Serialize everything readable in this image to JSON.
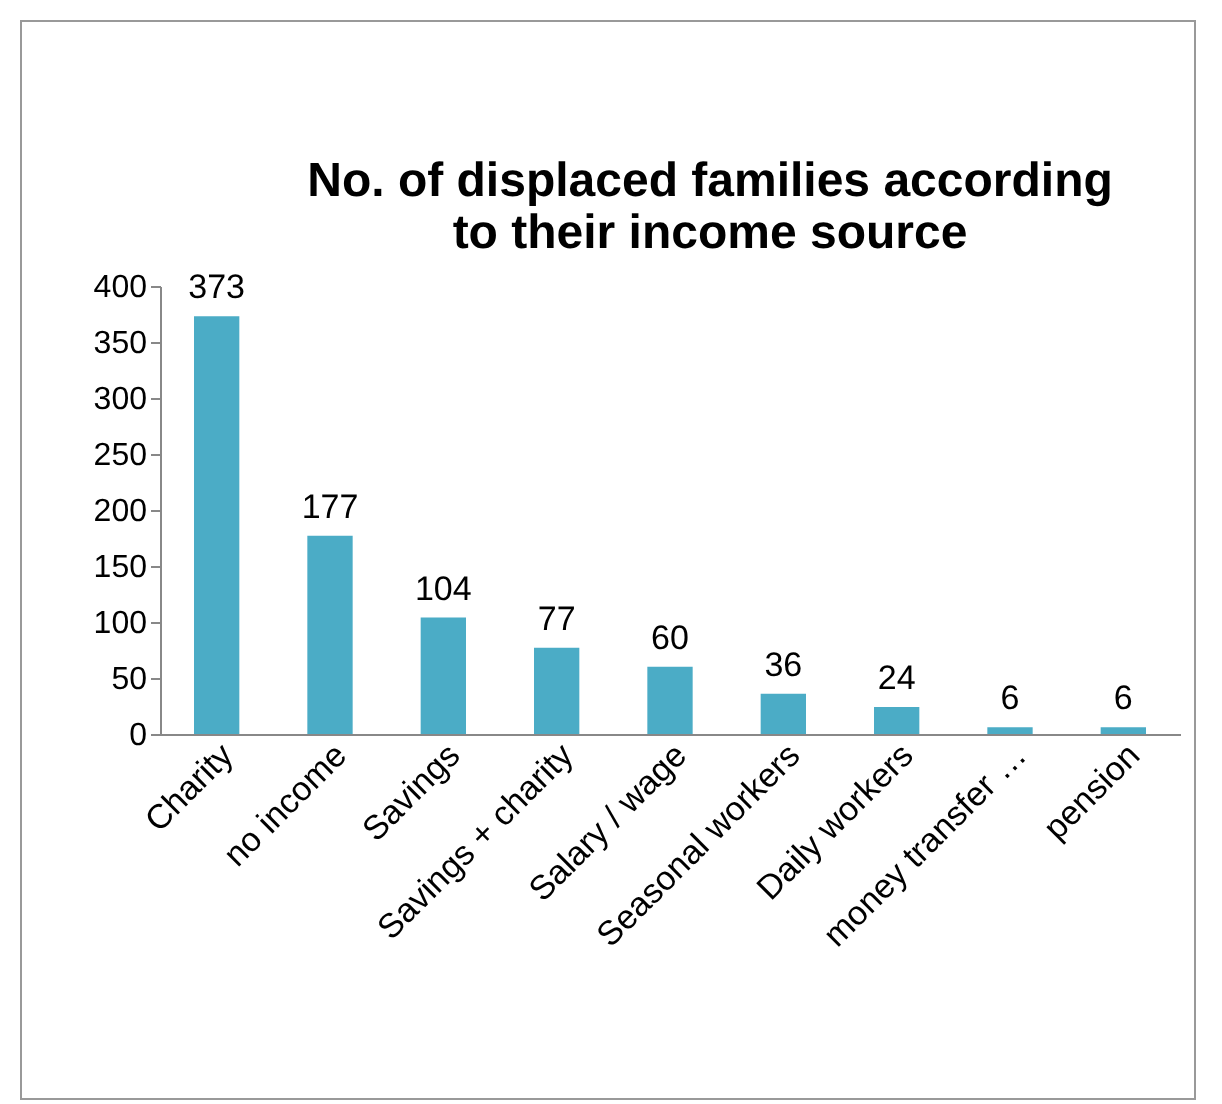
{
  "chart_data": {
    "type": "bar",
    "title": [
      "No. of displaced families according",
      "to their income source"
    ],
    "categories": [
      "Charity",
      "no income",
      "Savings",
      "Savings + charity",
      "Salary / wage",
      "Seasonal workers",
      "Daily workers",
      "money transfer …",
      "pension"
    ],
    "values": [
      373,
      177,
      104,
      77,
      60,
      36,
      24,
      6,
      6
    ],
    "color": "#4bacc6",
    "ylim": [
      0,
      400
    ],
    "yticks": [
      0,
      50,
      100,
      150,
      200,
      250,
      300,
      350,
      400
    ],
    "data_labels": true,
    "grid": false
  }
}
